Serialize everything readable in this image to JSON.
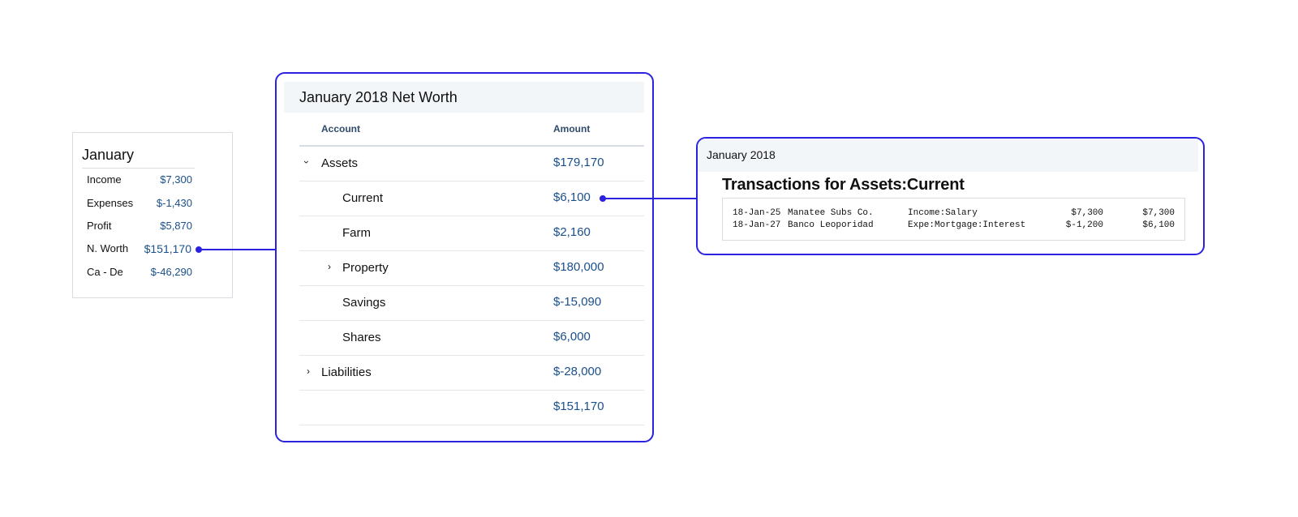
{
  "summary": {
    "title": "January",
    "rows": [
      {
        "label": "Income",
        "value": "$7,300"
      },
      {
        "label": "Expenses",
        "value": "$-1,430"
      },
      {
        "label": "Profit",
        "value": "$5,870"
      },
      {
        "label": "N. Worth",
        "value": "$151,170"
      },
      {
        "label": "Ca - De",
        "value": "$-46,290"
      }
    ]
  },
  "networth": {
    "title": "January 2018 Net Worth",
    "columns": {
      "account": "Account",
      "amount": "Amount"
    },
    "rows": [
      {
        "name": "Assets",
        "amount": "$179,170",
        "chevron": "expanded"
      },
      {
        "name": "Current",
        "amount": "$6,100",
        "chevron": "none"
      },
      {
        "name": "Farm",
        "amount": "$2,160",
        "chevron": "none"
      },
      {
        "name": "Property",
        "amount": "$180,000",
        "chevron": "collapsed"
      },
      {
        "name": "Savings",
        "amount": "$-15,090",
        "chevron": "none"
      },
      {
        "name": "Shares",
        "amount": "$6,000",
        "chevron": "none"
      },
      {
        "name": "Liabilities",
        "amount": "$-28,000",
        "chevron": "collapsed"
      },
      {
        "name": "",
        "amount": "$151,170",
        "chevron": "none"
      }
    ]
  },
  "transactions": {
    "period": "January 2018",
    "title": "Transactions for Assets:Current",
    "rows": [
      {
        "date": "18-Jan-25",
        "payee": "Manatee Subs Co.",
        "account": "Income:Salary",
        "amount": "$7,300",
        "balance": "$7,300"
      },
      {
        "date": "18-Jan-27",
        "payee": "Banco Leoporidad",
        "account": "Expe:Mortgage:Interest",
        "amount": "$-1,200",
        "balance": "$6,100"
      }
    ]
  },
  "icons": {
    "expanded": "chevron-down-icon",
    "collapsed": "chevron-right-icon"
  },
  "colors": {
    "accent": "#2b22e0",
    "amount": "#1a4f8b",
    "header_bg": "#f3f6f9"
  }
}
